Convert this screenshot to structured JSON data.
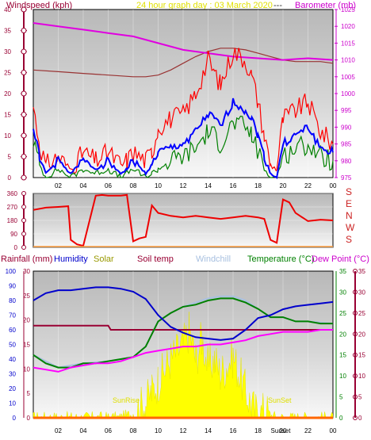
{
  "header": {
    "left_title": "Windspeed (kph)",
    "center_title": "24 hour graph day : 03 March 2020",
    "dashes": "---",
    "right_title": "Barometer (mb)"
  },
  "compass": {
    "letters": [
      "S",
      "E",
      "N",
      "W",
      "S"
    ],
    "color": "#cc2222"
  },
  "bottom_legend": {
    "rainfall": "Rainfall (mm)",
    "humidity": "Humidity",
    "solar": "Solar",
    "soil_temp": "Soil temp",
    "windchill": "Windchill",
    "temperature": "Temperature (°C)",
    "dew_point": "Dew Point (°C)"
  },
  "colors": {
    "wind_left_axis": "#990033",
    "baro_right_axis": "#cc00cc",
    "wind_gust": "#ff0000",
    "wind_avg": "#0000ff",
    "wind_low": "#008000",
    "barometer": "#e000e0",
    "baro_trend": "#993333",
    "rain_axis": "#990033",
    "humidity": "#0000cc",
    "solar": "#ffff00",
    "soil_temp": "#990033",
    "windchill": "#a8c0e0",
    "temperature": "#008000",
    "dew_point": "#ff00ff"
  },
  "chart_data": [
    {
      "type": "line",
      "name": "wind-barometer",
      "x_ticks": [
        "02",
        "04",
        "06",
        "08",
        "10",
        "12",
        "14",
        "16",
        "18",
        "20",
        "22",
        "00"
      ],
      "left_axis": {
        "label": "Windspeed (kph)",
        "min": 0,
        "max": 40,
        "ticks": [
          0,
          5,
          10,
          15,
          20,
          25,
          30,
          35,
          40
        ]
      },
      "right_axis": {
        "label": "Barometer (mb)",
        "min": 975,
        "max": 1025,
        "ticks": [
          975,
          980,
          985,
          990,
          995,
          1000,
          1005,
          1010,
          1015,
          1020,
          1025
        ]
      },
      "series": [
        {
          "name": "gust",
          "axis": "left",
          "x": [
            0,
            0.5,
            1,
            2,
            3,
            4,
            5,
            6,
            7,
            7.5,
            8,
            9,
            9.5,
            10,
            11,
            12,
            13,
            14,
            14.5,
            15,
            16,
            17,
            17.5,
            18,
            18.5,
            19,
            19.5,
            20,
            21,
            22,
            23,
            24
          ],
          "values": [
            17,
            8,
            3,
            5,
            2,
            6,
            4,
            6,
            3,
            4,
            6,
            4,
            6,
            12,
            14,
            15,
            20,
            28,
            25,
            22,
            30,
            28,
            24,
            18,
            10,
            3,
            2,
            14,
            16,
            18,
            11,
            8
          ]
        },
        {
          "name": "average",
          "axis": "left",
          "x": [
            0,
            0.5,
            1,
            2,
            3,
            4,
            5,
            6,
            7,
            7.5,
            8,
            9,
            9.5,
            10,
            11,
            12,
            13,
            14,
            14.5,
            15,
            16,
            17,
            17.5,
            18,
            18.5,
            19,
            19.5,
            20,
            21,
            22,
            23,
            24
          ],
          "values": [
            12,
            5,
            1,
            4,
            1,
            4,
            2,
            4,
            1,
            2,
            4,
            1,
            3,
            6,
            7,
            8,
            11,
            15,
            14,
            12,
            18,
            16,
            14,
            10,
            5,
            1,
            0,
            8,
            10,
            12,
            7,
            6
          ]
        },
        {
          "name": "low",
          "axis": "left",
          "x": [
            0,
            0.5,
            1,
            2,
            3,
            4,
            5,
            6,
            7,
            7.5,
            8,
            9,
            9.5,
            10,
            11,
            12,
            13,
            14,
            14.5,
            15,
            16,
            17,
            17.5,
            18,
            18.5,
            19,
            19.5,
            20,
            21,
            22,
            23,
            24
          ],
          "values": [
            9,
            3,
            0,
            2,
            0,
            2,
            1,
            2,
            0,
            1,
            2,
            0,
            1,
            2,
            4,
            5,
            7,
            11,
            10,
            8,
            13,
            12,
            10,
            6,
            2,
            0,
            0,
            5,
            7,
            8,
            5,
            4
          ]
        },
        {
          "name": "barometer",
          "axis": "right",
          "x": [
            0,
            2,
            4,
            6,
            8,
            10,
            12,
            14,
            16,
            18,
            20,
            22,
            24
          ],
          "values": [
            1021,
            1020,
            1019,
            1018,
            1017,
            1015,
            1013,
            1012,
            1011,
            1010.5,
            1010,
            1010.5,
            1010
          ]
        },
        {
          "name": "trend",
          "axis": "right",
          "x": [
            0,
            2,
            4,
            6,
            8,
            9,
            10,
            11,
            12,
            13,
            14,
            15,
            16,
            17,
            18,
            19,
            20,
            21,
            22,
            23,
            24
          ],
          "values": [
            1007,
            1006.5,
            1006,
            1005.5,
            1005,
            1005,
            1005.5,
            1007,
            1009,
            1011,
            1012.5,
            1013.5,
            1013.5,
            1013,
            1012,
            1011,
            1010,
            1009.5,
            1009.5,
            1009.5,
            1009
          ]
        }
      ]
    },
    {
      "type": "line",
      "name": "wind-direction",
      "x_ticks": [
        "02",
        "04",
        "06",
        "08",
        "10",
        "12",
        "14",
        "16",
        "18",
        "20",
        "22",
        "00"
      ],
      "left_axis": {
        "min": 0,
        "max": 360,
        "ticks": [
          0,
          90,
          180,
          270,
          360
        ]
      },
      "series": [
        {
          "name": "direction",
          "x": [
            0,
            1,
            2,
            2.8,
            3,
            3.5,
            4,
            5,
            5.5,
            6,
            7,
            7.5,
            8,
            8.5,
            9,
            9.5,
            10,
            11,
            12,
            13,
            14,
            15,
            16,
            17,
            18,
            18.5,
            19,
            19.5,
            20,
            20.5,
            21,
            22,
            23,
            24
          ],
          "values": [
            250,
            265,
            270,
            275,
            50,
            20,
            10,
            345,
            350,
            345,
            345,
            350,
            40,
            60,
            70,
            280,
            230,
            210,
            200,
            210,
            200,
            190,
            200,
            210,
            200,
            190,
            50,
            30,
            320,
            300,
            230,
            175,
            185,
            180
          ]
        }
      ]
    },
    {
      "type": "line",
      "name": "temperature-humidity",
      "x_ticks": [
        "02",
        "04",
        "06",
        "08",
        "10",
        "12",
        "14",
        "16",
        "18",
        "20",
        "22",
        "00"
      ],
      "annotations": [
        "SunRise",
        "SunSet",
        "Sunset"
      ],
      "rain_axis": {
        "label": "Rainfall (mm)",
        "min": 0,
        "max": 30,
        "ticks": [
          0,
          5,
          10,
          15,
          20,
          25,
          30
        ]
      },
      "humidity_axis": {
        "label": "Humidity",
        "min": 0,
        "max": 100,
        "ticks": [
          0,
          10,
          20,
          30,
          40,
          50,
          60,
          70,
          80,
          90,
          100
        ]
      },
      "temp_axis": {
        "label": "Temperature (°C)",
        "min": 0,
        "max": 35,
        "ticks": [
          0,
          5,
          10,
          15,
          20,
          25,
          30,
          35
        ]
      },
      "series": [
        {
          "name": "Humidity",
          "axis": "humidity",
          "x": [
            0,
            1,
            2,
            3,
            4,
            5,
            6,
            7,
            8,
            9,
            10,
            11,
            12,
            13,
            14,
            15,
            16,
            17,
            18,
            19,
            20,
            21,
            22,
            23,
            24
          ],
          "values": [
            80,
            85,
            87,
            87,
            88,
            89,
            89,
            88,
            86,
            81,
            70,
            62,
            58,
            55,
            54,
            53,
            54,
            60,
            68,
            70,
            74,
            76,
            77,
            78,
            79
          ]
        },
        {
          "name": "Temperature",
          "axis": "temp",
          "x": [
            0,
            1,
            2,
            3,
            4,
            5,
            6,
            7,
            8,
            9,
            10,
            11,
            12,
            13,
            14,
            15,
            16,
            17,
            18,
            19,
            20,
            21,
            22,
            23,
            24
          ],
          "values": [
            15,
            13,
            12,
            12,
            13,
            13,
            13.5,
            14,
            14.5,
            17,
            23,
            25,
            26.5,
            27,
            28,
            28.5,
            28.5,
            27.5,
            26,
            24,
            24,
            23,
            23,
            22.5,
            22.5
          ]
        },
        {
          "name": "Windchill",
          "axis": "temp",
          "x": [
            0,
            2,
            4,
            6,
            8,
            9,
            10,
            11,
            12,
            13,
            14,
            15,
            16,
            17,
            18,
            19,
            20,
            21,
            22,
            24
          ],
          "values": [
            15,
            12,
            13,
            13.5,
            14.5,
            17,
            23,
            25,
            26.5,
            27.5,
            28.5,
            29,
            29,
            28,
            26,
            24,
            24,
            23,
            23,
            22.5
          ]
        },
        {
          "name": "Dew Point",
          "axis": "temp",
          "x": [
            0,
            1,
            2,
            3,
            4,
            5,
            6,
            7,
            8,
            9,
            10,
            11,
            12,
            13,
            14,
            15,
            16,
            17,
            18,
            19,
            20,
            21,
            22,
            23,
            24
          ],
          "values": [
            12,
            11.5,
            11,
            12,
            12.5,
            13,
            13,
            13.5,
            14.5,
            15.5,
            16,
            16.5,
            17,
            17,
            17.5,
            17.5,
            18,
            18.5,
            19.5,
            20,
            20.5,
            20.5,
            20.5,
            21,
            21
          ]
        },
        {
          "name": "Soil temp",
          "axis": "temp",
          "x": [
            0,
            6,
            6.2,
            12,
            18,
            24
          ],
          "values": [
            22,
            22,
            21,
            21,
            21,
            21
          ]
        },
        {
          "name": "Solar",
          "axis": "humidity",
          "x": [
            0,
            7,
            8,
            9,
            9.5,
            10,
            11,
            12,
            12.5,
            13,
            13.5,
            14,
            14.5,
            15,
            16,
            17,
            17.5,
            18,
            18.5,
            19,
            19.5,
            24
          ],
          "values": [
            0,
            0,
            3,
            10,
            18,
            25,
            40,
            50,
            60,
            40,
            55,
            35,
            40,
            30,
            42,
            18,
            8,
            2,
            5,
            2,
            0,
            0
          ]
        },
        {
          "name": "Rainfall",
          "axis": "rain",
          "x": [
            0,
            24
          ],
          "values": [
            0,
            0
          ]
        }
      ]
    }
  ]
}
